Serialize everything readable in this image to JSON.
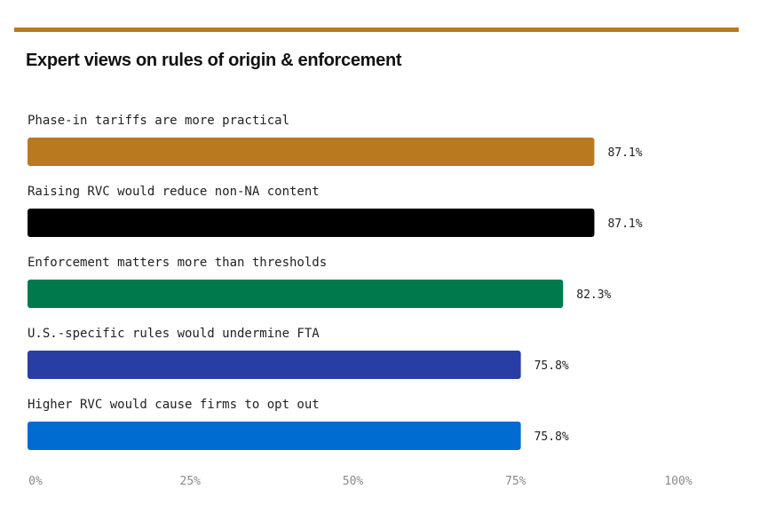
{
  "accent_color": "#b8791f",
  "title": "Expert views on rules of origin & enforcement",
  "chart_data": {
    "type": "bar",
    "orientation": "horizontal",
    "categories": [
      "Phase-in tariffs are more practical",
      "Raising RVC would reduce non-NA content",
      "Enforcement matters more than thresholds",
      "U.S.-specific rules would undermine FTA",
      "Higher RVC would cause firms to opt out"
    ],
    "values": [
      87.1,
      87.1,
      82.3,
      75.8,
      75.8
    ],
    "value_labels": [
      "87.1%",
      "87.1%",
      "82.3%",
      "75.8%",
      "75.8%"
    ],
    "colors": [
      "#b8791f",
      "#000000",
      "#007a4c",
      "#283ea4",
      "#006bd1"
    ],
    "x_ticks": [
      0,
      25,
      50,
      75,
      100
    ],
    "x_tick_labels": [
      "0%",
      "25%",
      "50%",
      "75%",
      "100%"
    ],
    "xlim": [
      0,
      100
    ],
    "grid": false,
    "legend": "none"
  }
}
